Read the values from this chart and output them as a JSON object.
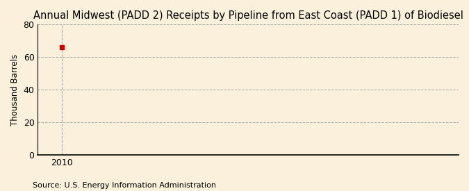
{
  "title": "Annual Midwest (PADD 2) Receipts by Pipeline from East Coast (PADD 1) of Biodiesel",
  "ylabel": "Thousand Barrels",
  "source": "Source: U.S. Energy Information Administration",
  "data_x": [
    2010
  ],
  "data_y": [
    66.0
  ],
  "xlim": [
    2009.3,
    2021.5
  ],
  "ylim": [
    0,
    80
  ],
  "yticks": [
    0,
    20,
    40,
    60,
    80
  ],
  "xticks": [
    2010
  ],
  "background_color": "#FAF0DC",
  "plot_bg_color": "#FAF0DC",
  "dot_color": "#CC0000",
  "grid_color": "#AAAAAA",
  "vline_color": "#AAAAAA",
  "title_fontsize": 10.5,
  "ylabel_fontsize": 8.5,
  "source_fontsize": 8,
  "tick_fontsize": 9
}
